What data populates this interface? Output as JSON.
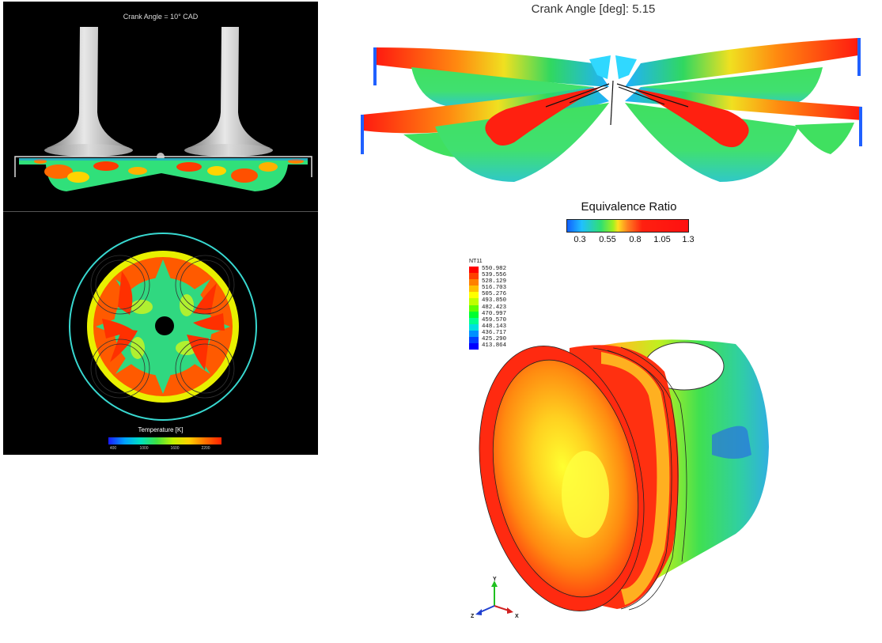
{
  "left_panel": {
    "crank_angle_label": "Crank Angle = 10° CAD",
    "temperature_title": "Temperature [K]",
    "temperature_ticks": [
      "400",
      "1000",
      "1600",
      "2200"
    ],
    "temperature_colors": [
      "#1a1aff",
      "#00a0ff",
      "#00e0c0",
      "#40e040",
      "#c0f000",
      "#ffd000",
      "#ff7000",
      "#ff2000"
    ]
  },
  "spray_panel": {
    "crank_angle_label": "Crank Angle [deg]: 5.15",
    "equivalence_title": "Equivalence Ratio",
    "equivalence_ticks": [
      "0.3",
      "0.55",
      "0.8",
      "1.05",
      "1.3"
    ]
  },
  "piston_panel": {
    "legend_title": "NT11",
    "legend_values": [
      "550.982",
      "539.556",
      "528.129",
      "516.703",
      "505.276",
      "493.850",
      "482.423",
      "470.997",
      "459.570",
      "448.143",
      "436.717",
      "425.290",
      "413.864"
    ],
    "legend_colors": [
      "#ff0000",
      "#ff4000",
      "#ff8000",
      "#ffbf00",
      "#ffff00",
      "#bfff00",
      "#60ff00",
      "#00ff30",
      "#00ff90",
      "#00e0e0",
      "#0090ff",
      "#0040ff",
      "#0000ff"
    ],
    "axes": {
      "y": "Y",
      "z": "Z",
      "x": "X"
    }
  }
}
